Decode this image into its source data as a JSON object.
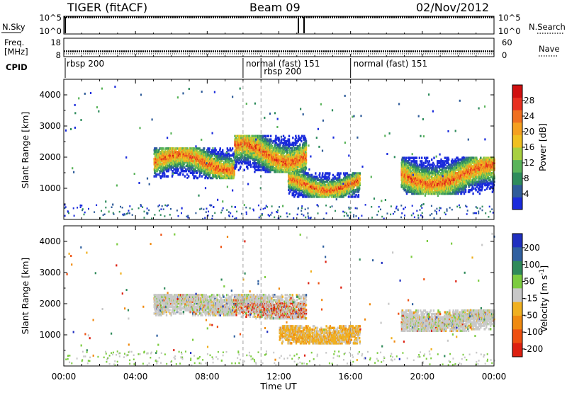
{
  "header": {
    "title_left": "TIGER (fitACF)",
    "title_center": "Beam 09",
    "title_right": "02/Nov/2012"
  },
  "top_panels": {
    "nsky_label": "N.Sky",
    "nsearch_label": "N.Search",
    "nsky_ticks": [
      "10^5",
      "10^0"
    ],
    "nsearch_ticks": [
      "10^5",
      "10^0"
    ],
    "freq_label_1": "Freq.",
    "freq_label_2": "[MHz]",
    "freq_ticks": [
      "18",
      "8"
    ],
    "nave_label": "Nave",
    "nave_ticks": [
      "60",
      "0"
    ],
    "cpid_label": "CPID",
    "cpid_segments": [
      {
        "label": "rbsp 200",
        "start": 0.0
      },
      {
        "label": "normal (fast) 151",
        "start": 10.0
      },
      {
        "label": "rbsp 200",
        "start": 11.0
      },
      {
        "label": "normal (fast) 151",
        "start": 16.0
      }
    ]
  },
  "chart_data": [
    {
      "type": "heatmap",
      "quantity": "Power",
      "ylabel": "Slant Range [km]",
      "xlabel": "",
      "xlim": [
        0,
        24
      ],
      "ylim": [
        0,
        4500
      ],
      "yticks": [
        1000,
        2000,
        3000,
        4000
      ],
      "colorbar": {
        "label": "Power [dB]",
        "ticks": [
          "4",
          "8",
          "12",
          "16",
          "20",
          "24",
          "28"
        ],
        "colors": [
          "#1a2bdc",
          "#2f5c9a",
          "#2e8c5c",
          "#5ab45a",
          "#a8d040",
          "#f0c020",
          "#f5a020",
          "#f07020",
          "#e83020",
          "#d01010"
        ]
      },
      "features": [
        {
          "desc": "echo band",
          "x": [
            5.0,
            9.5
          ],
          "y": [
            1300,
            2300
          ]
        },
        {
          "desc": "echo band",
          "x": [
            9.5,
            13.5
          ],
          "y": [
            1500,
            2700
          ]
        },
        {
          "desc": "echo band",
          "x": [
            12.5,
            16.5
          ],
          "y": [
            700,
            1500
          ]
        },
        {
          "desc": "echo band",
          "x": [
            18.8,
            24.0
          ],
          "y": [
            800,
            2000
          ]
        }
      ]
    },
    {
      "type": "heatmap",
      "quantity": "Velocity",
      "ylabel": "Slant Range [km]",
      "xlabel": "Time UT",
      "xlim": [
        0,
        24
      ],
      "ylim": [
        0,
        4500
      ],
      "yticks": [
        1000,
        2000,
        3000,
        4000
      ],
      "xticks": [
        "00:00",
        "04:00",
        "08:00",
        "12:00",
        "16:00",
        "20:00",
        "00:00"
      ],
      "colorbar": {
        "label": "Velocity [m s^-1]",
        "ticks": [
          "200",
          "100",
          "50",
          "-15",
          "-50",
          "-100",
          "-200"
        ],
        "colors": [
          "#2030c0",
          "#3060a0",
          "#2f8a5a",
          "#7ccc40",
          "#c8c8c8",
          "#f0b020",
          "#f08a10",
          "#ee5010",
          "#dd2010"
        ]
      },
      "features": [
        {
          "desc": "echo band",
          "x": [
            5.0,
            9.5
          ],
          "y": [
            1600,
            2300
          ]
        },
        {
          "desc": "echo band",
          "x": [
            9.5,
            13.5
          ],
          "y": [
            1500,
            2300
          ]
        },
        {
          "desc": "echo band",
          "x": [
            12.0,
            16.5
          ],
          "y": [
            700,
            1300
          ]
        },
        {
          "desc": "echo band",
          "x": [
            18.8,
            24.0
          ],
          "y": [
            1100,
            1800
          ]
        }
      ]
    }
  ],
  "time_ticks": [
    "00:00",
    "04:00",
    "08:00",
    "12:00",
    "16:00",
    "20:00",
    "00:00"
  ],
  "xlabel": "Time UT",
  "power_colorbar": {
    "label": "Power [dB]",
    "ticks": [
      "4",
      "8",
      "12",
      "16",
      "20",
      "24",
      "28"
    ]
  },
  "velocity_colorbar": {
    "label": "Velocity [m s",
    "label_exp": "-1",
    "label_end": "]",
    "ticks": [
      "200",
      "100",
      "50",
      "-15",
      "-50",
      "-100",
      "-200"
    ]
  },
  "range_ticks": [
    "1000",
    "2000",
    "3000",
    "4000"
  ],
  "range_label": "Slant Range [km]"
}
